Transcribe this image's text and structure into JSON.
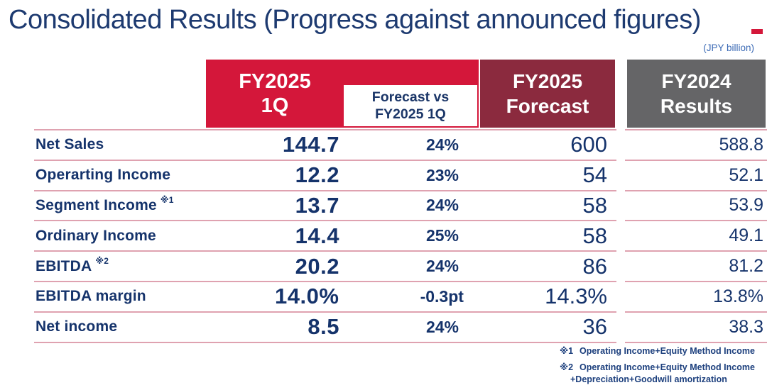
{
  "title": "Consolidated Results (Progress against announced figures)",
  "unit_label": "(JPY billion)",
  "colors": {
    "accent_red": "#d4173a",
    "maroon": "#8b2a3e",
    "gray": "#656567",
    "navy_text": "#15336b",
    "title_navy": "#1d3a70",
    "separator_pink": "#dfa2b0",
    "unit_blue": "#3b6ab5"
  },
  "table": {
    "headers": {
      "fy2025_1q": {
        "line1": "FY2025",
        "line2": "1Q"
      },
      "forecast_vs": {
        "line1": "Forecast vs",
        "line2": "FY2025 1Q"
      },
      "fy2025_forecast": {
        "line1": "FY2025",
        "line2": "Forecast"
      },
      "fy2024_results": {
        "line1": "FY2024",
        "line2": "Results"
      }
    },
    "rows": [
      {
        "label": "Net Sales",
        "note": "",
        "q1": "144.7",
        "pct": "24%",
        "forecast": "600",
        "fy2024": "588.8"
      },
      {
        "label": "Operarting Income",
        "note": "",
        "q1": "12.2",
        "pct": "23%",
        "forecast": "54",
        "fy2024": "52.1"
      },
      {
        "label": "Segment Income",
        "note": "※1",
        "q1": "13.7",
        "pct": "24%",
        "forecast": "58",
        "fy2024": "53.9"
      },
      {
        "label": "Ordinary Income",
        "note": "",
        "q1": "14.4",
        "pct": "25%",
        "forecast": "58",
        "fy2024": "49.1"
      },
      {
        "label": "EBITDA",
        "note": "※2",
        "q1": "20.2",
        "pct": "24%",
        "forecast": "86",
        "fy2024": "81.2"
      },
      {
        "label": "EBITDA margin",
        "note": "",
        "q1": "14.0%",
        "pct": "-0.3pt",
        "forecast": "14.3%",
        "fy2024": "13.8%"
      },
      {
        "label": "Net income",
        "note": "",
        "q1": "8.5",
        "pct": "24%",
        "forecast": "36",
        "fy2024": "38.3"
      }
    ]
  },
  "footnotes": [
    {
      "marker": "※1",
      "lines": [
        "Operating Income+Equity Method Income"
      ]
    },
    {
      "marker": "※2",
      "lines": [
        "Operating Income+Equity Method Income",
        "+Depreciation+Goodwill amortization"
      ]
    }
  ],
  "chart_data": {
    "type": "table",
    "title": "Consolidated Results (Progress against announced figures)",
    "unit": "JPY billion",
    "columns": [
      "Metric",
      "FY2025 1Q",
      "Forecast vs FY2025 1Q",
      "FY2025 Forecast",
      "FY2024 Results"
    ],
    "rows": [
      [
        "Net Sales",
        "144.7",
        "24%",
        "600",
        "588.8"
      ],
      [
        "Operarting Income",
        "12.2",
        "23%",
        "54",
        "52.1"
      ],
      [
        "Segment Income ※1",
        "13.7",
        "24%",
        "58",
        "53.9"
      ],
      [
        "Ordinary Income",
        "14.4",
        "25%",
        "58",
        "49.1"
      ],
      [
        "EBITDA ※2",
        "20.2",
        "24%",
        "86",
        "81.2"
      ],
      [
        "EBITDA margin",
        "14.0%",
        "-0.3pt",
        "14.3%",
        "13.8%"
      ],
      [
        "Net income",
        "8.5",
        "24%",
        "36",
        "38.3"
      ]
    ]
  }
}
